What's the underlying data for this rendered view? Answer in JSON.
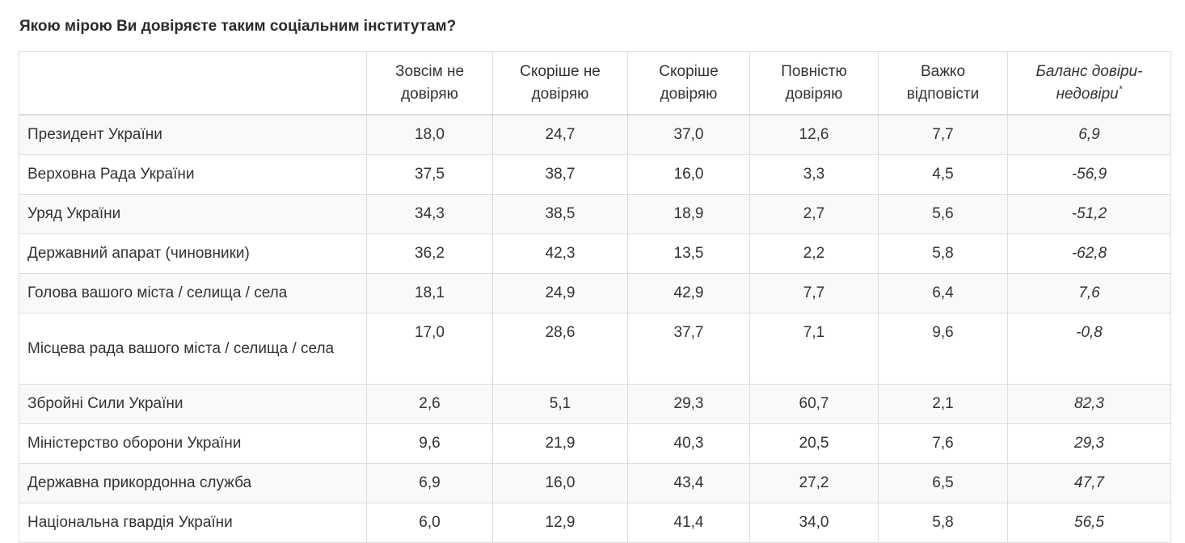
{
  "title": "Якою мірою Ви довіряєте таким соціальним інститутам?",
  "columns": [
    "",
    "Зовсім не довіряю",
    "Скоріше не довіряю",
    "Скоріше довіряю",
    "Повністю довіряю",
    "Важко відповісти",
    "Баланс довіри-недовіри"
  ],
  "balance_footnote_mark": "*",
  "rows": [
    {
      "institution": "Президент України",
      "values": [
        "18,0",
        "24,7",
        "37,0",
        "12,6",
        "7,7",
        "6,9"
      ]
    },
    {
      "institution": "Верховна Рада України",
      "values": [
        "37,5",
        "38,7",
        "16,0",
        "3,3",
        "4,5",
        "-56,9"
      ]
    },
    {
      "institution": "Уряд України",
      "values": [
        "34,3",
        "38,5",
        "18,9",
        "2,7",
        "5,6",
        "-51,2"
      ]
    },
    {
      "institution": "Державний апарат (чиновники)",
      "values": [
        "36,2",
        "42,3",
        "13,5",
        "2,2",
        "5,8",
        "-62,8"
      ]
    },
    {
      "institution": "Голова вашого міста / селища / села",
      "values": [
        "18,1",
        "24,9",
        "42,9",
        "7,7",
        "6,4",
        "7,6"
      ]
    },
    {
      "institution": "Місцева рада вашого міста / селища / села",
      "values": [
        "17,0",
        "28,6",
        "37,7",
        "7,1",
        "9,6",
        "-0,8"
      ]
    },
    {
      "institution": "Збройні Сили України",
      "values": [
        "2,6",
        "5,1",
        "29,3",
        "60,7",
        "2,1",
        "82,3"
      ]
    },
    {
      "institution": "Міністерство оборони України",
      "values": [
        "9,6",
        "21,9",
        "40,3",
        "20,5",
        "7,6",
        "29,3"
      ]
    },
    {
      "institution": "Державна прикордонна служба",
      "values": [
        "6,9",
        "16,0",
        "43,4",
        "27,2",
        "6,5",
        "47,7"
      ]
    },
    {
      "institution": "Національна гвардія України",
      "values": [
        "6,0",
        "12,9",
        "41,4",
        "34,0",
        "5,8",
        "56,5"
      ]
    }
  ]
}
